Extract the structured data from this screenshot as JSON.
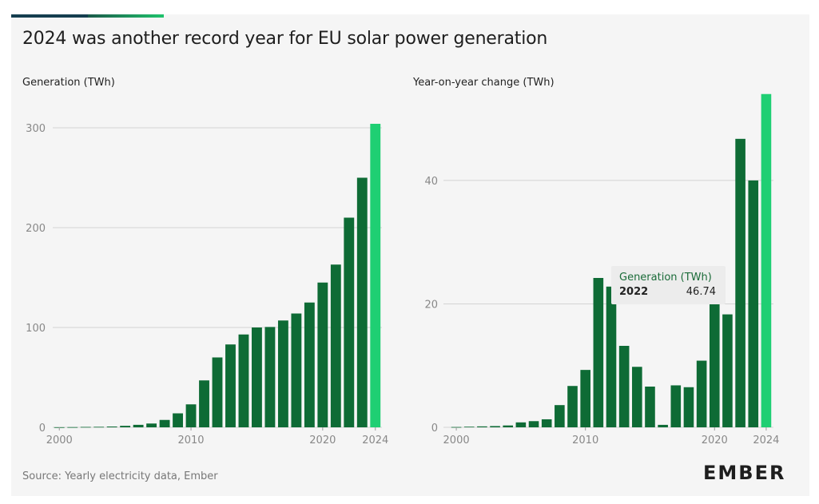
{
  "title": "2024 was another record year for EU solar power generation",
  "source": "Source: Yearly electricity data, Ember",
  "logo_text": "EMBER",
  "colors": {
    "bar": "#0e6b35",
    "highlight": "#1fcf73",
    "grid": "#d3d3d3",
    "axis_text": "#888888"
  },
  "tooltip": {
    "series": "Generation (TWh)",
    "year": "2022",
    "value": "46.74"
  },
  "chart_data": [
    {
      "type": "bar",
      "title": "Generation (TWh)",
      "x": [
        2000,
        2001,
        2002,
        2003,
        2004,
        2005,
        2006,
        2007,
        2008,
        2009,
        2010,
        2011,
        2012,
        2013,
        2014,
        2015,
        2016,
        2017,
        2018,
        2019,
        2020,
        2021,
        2022,
        2023,
        2024
      ],
      "values": [
        0.1,
        0.2,
        0.4,
        0.5,
        0.8,
        1.5,
        2.5,
        3.8,
        7.4,
        14,
        23,
        47,
        70,
        83,
        93,
        100,
        100.5,
        107,
        114,
        125,
        145,
        163,
        210,
        250,
        304
      ],
      "highlight": [
        2024
      ],
      "xticks": [
        2000,
        2010,
        2020,
        2024
      ],
      "yticks": [
        0,
        100,
        200,
        300
      ],
      "ylim": [
        0,
        340
      ],
      "grid": true
    },
    {
      "type": "bar",
      "title": "Year-on-year change (TWh)",
      "x": [
        2000,
        2001,
        2002,
        2003,
        2004,
        2005,
        2006,
        2007,
        2008,
        2009,
        2010,
        2011,
        2012,
        2013,
        2014,
        2015,
        2016,
        2017,
        2018,
        2019,
        2020,
        2021,
        2022,
        2023,
        2024
      ],
      "values": [
        0.05,
        0.1,
        0.15,
        0.2,
        0.3,
        0.8,
        1.0,
        1.3,
        3.6,
        6.7,
        9.3,
        24.2,
        22.8,
        13.2,
        9.8,
        6.6,
        0.4,
        6.8,
        6.5,
        10.8,
        20,
        18.3,
        46.74,
        40,
        54
      ],
      "highlight": [
        2024
      ],
      "xticks": [
        2000,
        2010,
        2020,
        2024
      ],
      "yticks": [
        0,
        20,
        40
      ],
      "ylim": [
        0,
        55
      ],
      "grid": true
    }
  ]
}
